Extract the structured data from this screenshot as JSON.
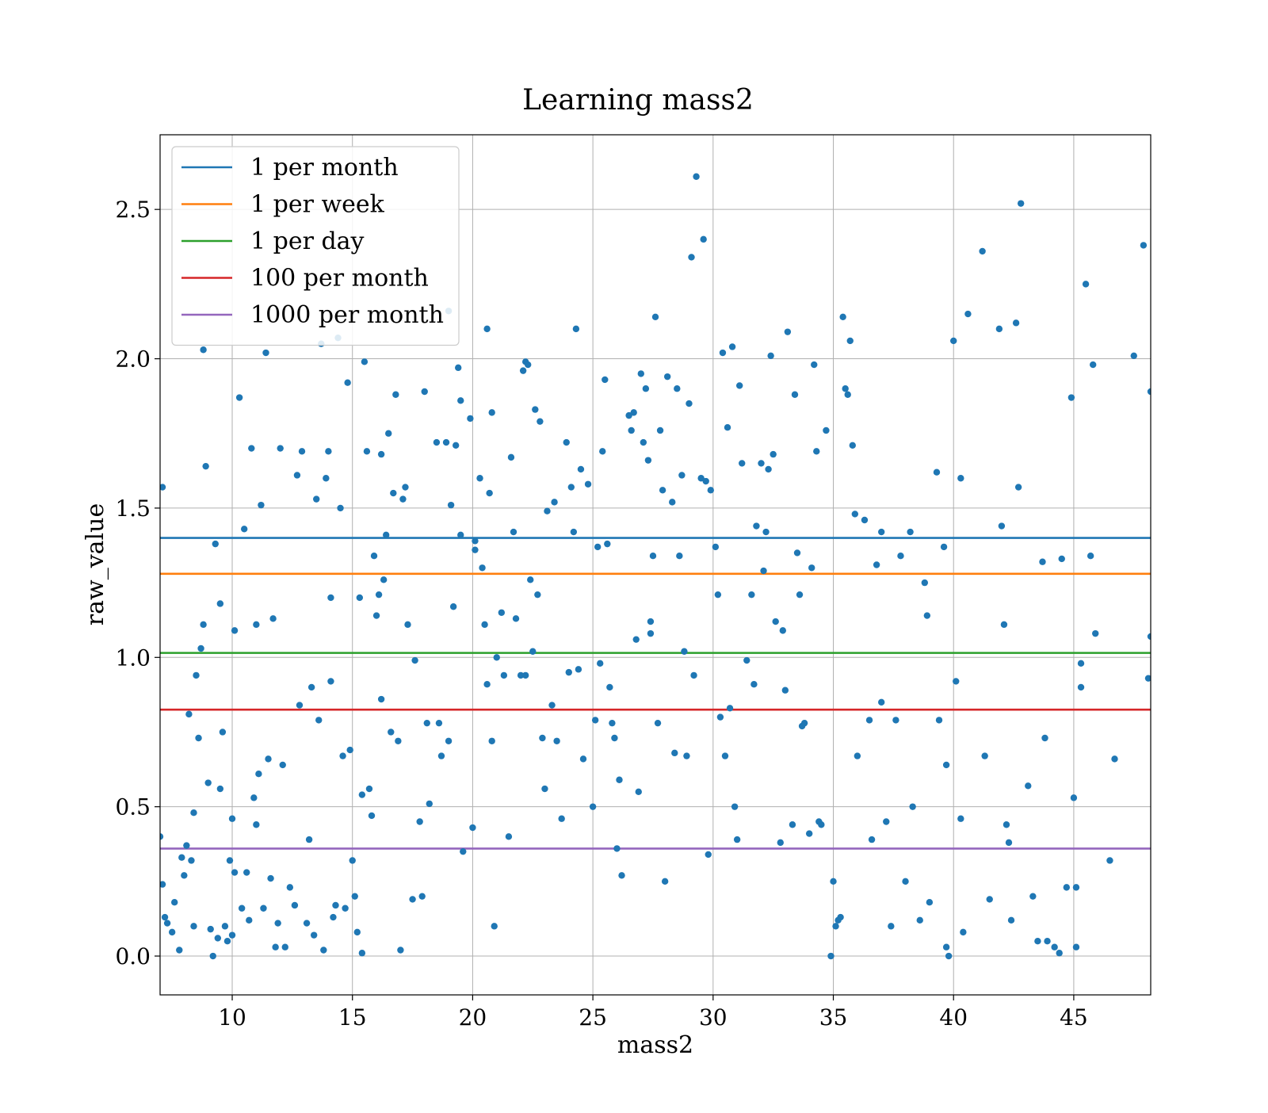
{
  "figure": {
    "title": "Learning mass2"
  },
  "chart_data": {
    "type": "scatter",
    "title": "Learning mass2",
    "xlabel": "mass2",
    "ylabel": "raw_value",
    "xlim": [
      7,
      48.2
    ],
    "ylim": [
      -0.13,
      2.75
    ],
    "x_ticks": [
      10,
      15,
      20,
      25,
      30,
      35,
      40,
      45
    ],
    "x_tick_labels": [
      "10",
      "15",
      "20",
      "25",
      "30",
      "35",
      "40",
      "45"
    ],
    "y_ticks": [
      0.0,
      0.5,
      1.0,
      1.5,
      2.0,
      2.5
    ],
    "y_tick_labels": [
      "0.0",
      "0.5",
      "1.0",
      "1.5",
      "2.0",
      "2.5"
    ],
    "grid": true,
    "legend_position": "top-left",
    "point_color": "#1f77b4",
    "reference_lines": [
      {
        "name": "1 per month",
        "y": 1.4,
        "color": "#1f77b4"
      },
      {
        "name": "1 per week",
        "y": 1.28,
        "color": "#ff7f0e"
      },
      {
        "name": "1 per day",
        "y": 1.015,
        "color": "#2ca02c"
      },
      {
        "name": "100 per month",
        "y": 0.825,
        "color": "#d62728"
      },
      {
        "name": "1000 per month",
        "y": 0.36,
        "color": "#9467bd"
      }
    ],
    "points": [
      [
        7.1,
        1.57
      ],
      [
        7.0,
        0.4
      ],
      [
        7.1,
        0.24
      ],
      [
        7.2,
        0.13
      ],
      [
        7.3,
        0.11
      ],
      [
        7.5,
        0.08
      ],
      [
        7.6,
        0.18
      ],
      [
        7.8,
        0.02
      ],
      [
        7.9,
        0.33
      ],
      [
        8.0,
        0.27
      ],
      [
        8.1,
        0.37
      ],
      [
        8.2,
        0.81
      ],
      [
        8.3,
        0.32
      ],
      [
        8.4,
        0.48
      ],
      [
        8.4,
        0.1
      ],
      [
        8.5,
        0.94
      ],
      [
        8.6,
        0.73
      ],
      [
        8.7,
        1.03
      ],
      [
        8.8,
        1.11
      ],
      [
        8.8,
        2.03
      ],
      [
        8.9,
        1.64
      ],
      [
        9.0,
        0.58
      ],
      [
        9.1,
        0.09
      ],
      [
        9.2,
        0.0
      ],
      [
        9.3,
        1.38
      ],
      [
        9.4,
        0.06
      ],
      [
        9.5,
        1.18
      ],
      [
        9.5,
        0.56
      ],
      [
        9.6,
        0.75
      ],
      [
        9.7,
        0.1
      ],
      [
        9.8,
        0.05
      ],
      [
        9.9,
        0.32
      ],
      [
        10.0,
        0.07
      ],
      [
        10.0,
        0.46
      ],
      [
        10.1,
        1.09
      ],
      [
        10.1,
        0.28
      ],
      [
        10.3,
        1.87
      ],
      [
        10.4,
        0.16
      ],
      [
        10.5,
        1.43
      ],
      [
        10.6,
        0.28
      ],
      [
        10.7,
        0.12
      ],
      [
        10.8,
        1.7
      ],
      [
        10.9,
        0.53
      ],
      [
        11.0,
        1.11
      ],
      [
        11.0,
        0.44
      ],
      [
        11.1,
        0.61
      ],
      [
        11.2,
        1.51
      ],
      [
        11.3,
        0.16
      ],
      [
        11.4,
        2.02
      ],
      [
        11.5,
        0.66
      ],
      [
        11.6,
        0.26
      ],
      [
        11.7,
        1.13
      ],
      [
        11.8,
        0.03
      ],
      [
        11.9,
        0.11
      ],
      [
        12.0,
        1.7
      ],
      [
        12.1,
        0.64
      ],
      [
        12.2,
        0.03
      ],
      [
        12.4,
        0.23
      ],
      [
        12.6,
        0.17
      ],
      [
        12.7,
        1.61
      ],
      [
        12.8,
        0.84
      ],
      [
        12.9,
        1.69
      ],
      [
        13.1,
        0.11
      ],
      [
        13.2,
        0.39
      ],
      [
        13.3,
        0.9
      ],
      [
        13.4,
        0.07
      ],
      [
        13.5,
        1.53
      ],
      [
        13.6,
        0.79
      ],
      [
        13.7,
        2.05
      ],
      [
        13.8,
        0.02
      ],
      [
        13.9,
        1.6
      ],
      [
        14.0,
        1.69
      ],
      [
        14.1,
        0.92
      ],
      [
        14.1,
        1.2
      ],
      [
        14.2,
        0.13
      ],
      [
        14.3,
        0.17
      ],
      [
        14.4,
        2.07
      ],
      [
        14.5,
        1.5
      ],
      [
        14.6,
        0.67
      ],
      [
        14.7,
        0.16
      ],
      [
        14.8,
        1.92
      ],
      [
        14.9,
        0.69
      ],
      [
        15.0,
        0.32
      ],
      [
        15.1,
        0.2
      ],
      [
        15.2,
        0.08
      ],
      [
        15.3,
        1.2
      ],
      [
        15.4,
        0.54
      ],
      [
        15.4,
        0.01
      ],
      [
        15.5,
        1.99
      ],
      [
        15.6,
        1.69
      ],
      [
        15.7,
        0.56
      ],
      [
        15.8,
        0.47
      ],
      [
        15.9,
        1.34
      ],
      [
        16.0,
        1.14
      ],
      [
        16.1,
        1.21
      ],
      [
        16.2,
        1.68
      ],
      [
        16.2,
        0.86
      ],
      [
        16.3,
        1.26
      ],
      [
        16.4,
        1.41
      ],
      [
        16.5,
        1.75
      ],
      [
        16.6,
        0.75
      ],
      [
        16.7,
        1.55
      ],
      [
        16.8,
        1.88
      ],
      [
        16.9,
        0.72
      ],
      [
        17.0,
        0.02
      ],
      [
        17.1,
        1.53
      ],
      [
        17.2,
        1.57
      ],
      [
        17.3,
        1.11
      ],
      [
        17.5,
        0.19
      ],
      [
        17.6,
        0.99
      ],
      [
        17.8,
        0.45
      ],
      [
        17.9,
        0.2
      ],
      [
        18.0,
        1.89
      ],
      [
        18.1,
        0.78
      ],
      [
        18.2,
        0.51
      ],
      [
        18.5,
        1.72
      ],
      [
        18.6,
        0.78
      ],
      [
        18.7,
        0.67
      ],
      [
        18.9,
        1.72
      ],
      [
        19.0,
        2.16
      ],
      [
        19.0,
        0.72
      ],
      [
        19.1,
        1.51
      ],
      [
        19.2,
        1.17
      ],
      [
        19.3,
        1.71
      ],
      [
        19.4,
        1.97
      ],
      [
        19.5,
        1.86
      ],
      [
        19.5,
        1.41
      ],
      [
        19.6,
        0.35
      ],
      [
        19.9,
        1.8
      ],
      [
        20.0,
        0.43
      ],
      [
        20.1,
        1.36
      ],
      [
        20.1,
        1.39
      ],
      [
        20.3,
        1.6
      ],
      [
        20.4,
        1.3
      ],
      [
        20.5,
        1.11
      ],
      [
        20.6,
        0.91
      ],
      [
        20.6,
        2.1
      ],
      [
        20.7,
        1.55
      ],
      [
        20.8,
        1.82
      ],
      [
        20.8,
        0.72
      ],
      [
        20.9,
        0.1
      ],
      [
        21.0,
        1.0
      ],
      [
        21.2,
        1.15
      ],
      [
        21.3,
        0.94
      ],
      [
        21.5,
        0.4
      ],
      [
        21.6,
        1.67
      ],
      [
        21.7,
        1.42
      ],
      [
        21.8,
        1.13
      ],
      [
        22.0,
        0.94
      ],
      [
        22.1,
        1.96
      ],
      [
        22.2,
        1.99
      ],
      [
        22.2,
        0.94
      ],
      [
        22.3,
        1.98
      ],
      [
        22.4,
        1.26
      ],
      [
        22.5,
        1.02
      ],
      [
        22.6,
        1.83
      ],
      [
        22.7,
        1.21
      ],
      [
        22.8,
        1.79
      ],
      [
        22.9,
        0.73
      ],
      [
        23.0,
        0.56
      ],
      [
        23.1,
        1.49
      ],
      [
        23.3,
        0.84
      ],
      [
        23.4,
        1.52
      ],
      [
        23.5,
        0.72
      ],
      [
        23.7,
        0.46
      ],
      [
        23.9,
        1.72
      ],
      [
        24.0,
        0.95
      ],
      [
        24.1,
        1.57
      ],
      [
        24.2,
        1.42
      ],
      [
        24.3,
        2.1
      ],
      [
        24.4,
        0.96
      ],
      [
        24.5,
        1.63
      ],
      [
        24.6,
        0.66
      ],
      [
        24.8,
        1.58
      ],
      [
        25.0,
        0.5
      ],
      [
        25.1,
        0.79
      ],
      [
        25.2,
        1.37
      ],
      [
        25.3,
        0.98
      ],
      [
        25.4,
        1.69
      ],
      [
        25.5,
        1.93
      ],
      [
        25.6,
        1.38
      ],
      [
        25.7,
        0.9
      ],
      [
        25.8,
        0.78
      ],
      [
        25.9,
        0.73
      ],
      [
        26.0,
        0.36
      ],
      [
        26.1,
        0.59
      ],
      [
        26.2,
        0.27
      ],
      [
        26.5,
        1.81
      ],
      [
        26.6,
        1.76
      ],
      [
        26.7,
        1.82
      ],
      [
        26.8,
        1.06
      ],
      [
        26.9,
        0.55
      ],
      [
        27.0,
        1.95
      ],
      [
        27.1,
        1.72
      ],
      [
        27.2,
        1.9
      ],
      [
        27.3,
        1.66
      ],
      [
        27.4,
        1.08
      ],
      [
        27.4,
        1.12
      ],
      [
        27.5,
        1.34
      ],
      [
        27.6,
        2.14
      ],
      [
        27.7,
        0.78
      ],
      [
        27.8,
        1.76
      ],
      [
        27.9,
        1.56
      ],
      [
        28.0,
        0.25
      ],
      [
        28.1,
        1.94
      ],
      [
        28.3,
        1.52
      ],
      [
        28.4,
        0.68
      ],
      [
        28.5,
        1.9
      ],
      [
        28.6,
        1.34
      ],
      [
        28.7,
        1.61
      ],
      [
        28.8,
        1.02
      ],
      [
        28.9,
        0.67
      ],
      [
        29.0,
        1.85
      ],
      [
        29.1,
        2.34
      ],
      [
        29.2,
        0.94
      ],
      [
        29.3,
        2.61
      ],
      [
        29.5,
        1.6
      ],
      [
        29.6,
        2.4
      ],
      [
        29.7,
        1.59
      ],
      [
        29.8,
        0.34
      ],
      [
        29.9,
        1.56
      ],
      [
        30.1,
        1.37
      ],
      [
        30.2,
        1.21
      ],
      [
        30.3,
        0.8
      ],
      [
        30.4,
        2.02
      ],
      [
        30.5,
        0.67
      ],
      [
        30.6,
        1.77
      ],
      [
        30.7,
        0.83
      ],
      [
        30.8,
        2.04
      ],
      [
        30.9,
        0.5
      ],
      [
        31.0,
        0.39
      ],
      [
        31.1,
        1.91
      ],
      [
        31.2,
        1.65
      ],
      [
        31.4,
        0.99
      ],
      [
        31.6,
        1.21
      ],
      [
        31.7,
        0.91
      ],
      [
        31.8,
        1.44
      ],
      [
        32.0,
        1.65
      ],
      [
        32.1,
        1.29
      ],
      [
        32.2,
        1.42
      ],
      [
        32.3,
        1.63
      ],
      [
        32.4,
        2.01
      ],
      [
        32.5,
        1.68
      ],
      [
        32.6,
        1.12
      ],
      [
        32.8,
        0.38
      ],
      [
        32.9,
        1.09
      ],
      [
        33.0,
        0.89
      ],
      [
        33.1,
        2.09
      ],
      [
        33.3,
        0.44
      ],
      [
        33.4,
        1.88
      ],
      [
        33.5,
        1.35
      ],
      [
        33.6,
        1.21
      ],
      [
        33.7,
        0.77
      ],
      [
        33.8,
        0.78
      ],
      [
        34.0,
        0.41
      ],
      [
        34.1,
        1.3
      ],
      [
        34.2,
        1.98
      ],
      [
        34.3,
        1.69
      ],
      [
        34.4,
        0.45
      ],
      [
        34.5,
        0.44
      ],
      [
        34.7,
        1.76
      ],
      [
        34.9,
        0.0
      ],
      [
        35.1,
        0.1
      ],
      [
        35.2,
        0.12
      ],
      [
        35.3,
        0.13
      ],
      [
        35.4,
        2.14
      ],
      [
        35.5,
        1.9
      ],
      [
        35.6,
        1.88
      ],
      [
        35.7,
        2.06
      ],
      [
        35.8,
        1.71
      ],
      [
        35.9,
        1.48
      ],
      [
        35.0,
        0.25
      ],
      [
        36.0,
        0.67
      ],
      [
        36.3,
        1.46
      ],
      [
        36.5,
        0.79
      ],
      [
        36.6,
        0.39
      ],
      [
        36.8,
        1.31
      ],
      [
        37.0,
        0.85
      ],
      [
        37.0,
        1.42
      ],
      [
        37.2,
        0.45
      ],
      [
        37.4,
        0.1
      ],
      [
        37.6,
        0.79
      ],
      [
        37.8,
        1.34
      ],
      [
        38.0,
        0.25
      ],
      [
        38.2,
        1.42
      ],
      [
        38.3,
        0.5
      ],
      [
        38.6,
        0.12
      ],
      [
        38.8,
        1.25
      ],
      [
        38.9,
        1.14
      ],
      [
        39.0,
        0.18
      ],
      [
        39.3,
        1.62
      ],
      [
        39.4,
        0.79
      ],
      [
        39.6,
        1.37
      ],
      [
        39.7,
        0.64
      ],
      [
        39.7,
        0.03
      ],
      [
        39.8,
        0.0
      ],
      [
        40.0,
        2.06
      ],
      [
        40.1,
        0.92
      ],
      [
        40.3,
        1.6
      ],
      [
        40.3,
        0.46
      ],
      [
        40.4,
        0.08
      ],
      [
        40.6,
        2.15
      ],
      [
        41.2,
        2.36
      ],
      [
        41.3,
        0.67
      ],
      [
        41.5,
        0.19
      ],
      [
        41.9,
        2.1
      ],
      [
        42.0,
        1.44
      ],
      [
        42.1,
        1.11
      ],
      [
        42.2,
        0.44
      ],
      [
        42.3,
        0.38
      ],
      [
        42.4,
        0.12
      ],
      [
        42.6,
        2.12
      ],
      [
        42.7,
        1.57
      ],
      [
        42.8,
        2.52
      ],
      [
        43.1,
        0.57
      ],
      [
        43.3,
        0.2
      ],
      [
        43.5,
        0.05
      ],
      [
        43.7,
        1.32
      ],
      [
        43.8,
        0.73
      ],
      [
        43.9,
        0.05
      ],
      [
        44.2,
        0.03
      ],
      [
        44.4,
        0.01
      ],
      [
        44.5,
        1.33
      ],
      [
        44.7,
        0.23
      ],
      [
        44.9,
        1.87
      ],
      [
        45.0,
        0.53
      ],
      [
        45.1,
        0.23
      ],
      [
        45.1,
        0.03
      ],
      [
        45.3,
        0.98
      ],
      [
        45.3,
        0.9
      ],
      [
        45.5,
        2.25
      ],
      [
        45.7,
        1.34
      ],
      [
        45.8,
        1.98
      ],
      [
        45.9,
        1.08
      ],
      [
        46.5,
        0.32
      ],
      [
        46.7,
        0.66
      ],
      [
        47.5,
        2.01
      ],
      [
        47.9,
        2.38
      ],
      [
        48.2,
        1.89
      ],
      [
        48.2,
        1.07
      ],
      [
        48.1,
        0.93
      ]
    ]
  }
}
